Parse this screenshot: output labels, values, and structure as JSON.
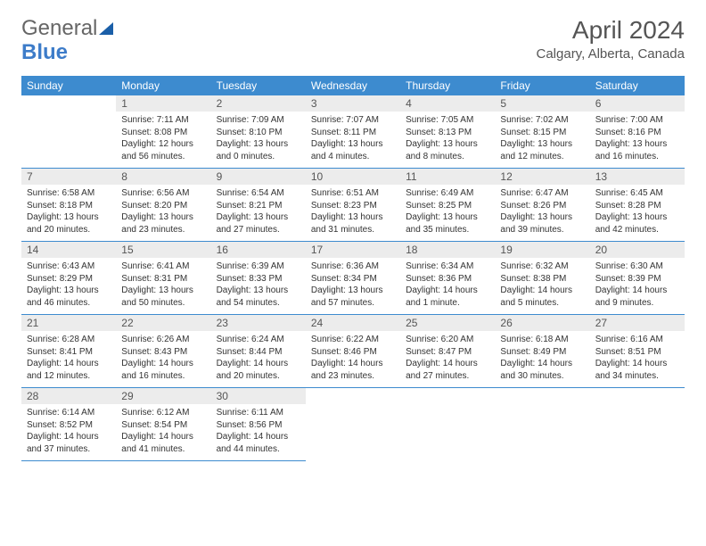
{
  "brand": {
    "part1": "General",
    "part2": "Blue"
  },
  "title": "April 2024",
  "location": "Calgary, Alberta, Canada",
  "colors": {
    "header_bg": "#3d8bcf",
    "header_text": "#ffffff",
    "daynum_bg": "#ececec",
    "text": "#333333",
    "rule": "#3d8bcf",
    "brand_blue": "#3d7cc9"
  },
  "weekdays": [
    "Sunday",
    "Monday",
    "Tuesday",
    "Wednesday",
    "Thursday",
    "Friday",
    "Saturday"
  ],
  "first_weekday_index": 1,
  "days": [
    {
      "n": 1,
      "sunrise": "7:11 AM",
      "sunset": "8:08 PM",
      "daylight": "12 hours and 56 minutes."
    },
    {
      "n": 2,
      "sunrise": "7:09 AM",
      "sunset": "8:10 PM",
      "daylight": "13 hours and 0 minutes."
    },
    {
      "n": 3,
      "sunrise": "7:07 AM",
      "sunset": "8:11 PM",
      "daylight": "13 hours and 4 minutes."
    },
    {
      "n": 4,
      "sunrise": "7:05 AM",
      "sunset": "8:13 PM",
      "daylight": "13 hours and 8 minutes."
    },
    {
      "n": 5,
      "sunrise": "7:02 AM",
      "sunset": "8:15 PM",
      "daylight": "13 hours and 12 minutes."
    },
    {
      "n": 6,
      "sunrise": "7:00 AM",
      "sunset": "8:16 PM",
      "daylight": "13 hours and 16 minutes."
    },
    {
      "n": 7,
      "sunrise": "6:58 AM",
      "sunset": "8:18 PM",
      "daylight": "13 hours and 20 minutes."
    },
    {
      "n": 8,
      "sunrise": "6:56 AM",
      "sunset": "8:20 PM",
      "daylight": "13 hours and 23 minutes."
    },
    {
      "n": 9,
      "sunrise": "6:54 AM",
      "sunset": "8:21 PM",
      "daylight": "13 hours and 27 minutes."
    },
    {
      "n": 10,
      "sunrise": "6:51 AM",
      "sunset": "8:23 PM",
      "daylight": "13 hours and 31 minutes."
    },
    {
      "n": 11,
      "sunrise": "6:49 AM",
      "sunset": "8:25 PM",
      "daylight": "13 hours and 35 minutes."
    },
    {
      "n": 12,
      "sunrise": "6:47 AM",
      "sunset": "8:26 PM",
      "daylight": "13 hours and 39 minutes."
    },
    {
      "n": 13,
      "sunrise": "6:45 AM",
      "sunset": "8:28 PM",
      "daylight": "13 hours and 42 minutes."
    },
    {
      "n": 14,
      "sunrise": "6:43 AM",
      "sunset": "8:29 PM",
      "daylight": "13 hours and 46 minutes."
    },
    {
      "n": 15,
      "sunrise": "6:41 AM",
      "sunset": "8:31 PM",
      "daylight": "13 hours and 50 minutes."
    },
    {
      "n": 16,
      "sunrise": "6:39 AM",
      "sunset": "8:33 PM",
      "daylight": "13 hours and 54 minutes."
    },
    {
      "n": 17,
      "sunrise": "6:36 AM",
      "sunset": "8:34 PM",
      "daylight": "13 hours and 57 minutes."
    },
    {
      "n": 18,
      "sunrise": "6:34 AM",
      "sunset": "8:36 PM",
      "daylight": "14 hours and 1 minute."
    },
    {
      "n": 19,
      "sunrise": "6:32 AM",
      "sunset": "8:38 PM",
      "daylight": "14 hours and 5 minutes."
    },
    {
      "n": 20,
      "sunrise": "6:30 AM",
      "sunset": "8:39 PM",
      "daylight": "14 hours and 9 minutes."
    },
    {
      "n": 21,
      "sunrise": "6:28 AM",
      "sunset": "8:41 PM",
      "daylight": "14 hours and 12 minutes."
    },
    {
      "n": 22,
      "sunrise": "6:26 AM",
      "sunset": "8:43 PM",
      "daylight": "14 hours and 16 minutes."
    },
    {
      "n": 23,
      "sunrise": "6:24 AM",
      "sunset": "8:44 PM",
      "daylight": "14 hours and 20 minutes."
    },
    {
      "n": 24,
      "sunrise": "6:22 AM",
      "sunset": "8:46 PM",
      "daylight": "14 hours and 23 minutes."
    },
    {
      "n": 25,
      "sunrise": "6:20 AM",
      "sunset": "8:47 PM",
      "daylight": "14 hours and 27 minutes."
    },
    {
      "n": 26,
      "sunrise": "6:18 AM",
      "sunset": "8:49 PM",
      "daylight": "14 hours and 30 minutes."
    },
    {
      "n": 27,
      "sunrise": "6:16 AM",
      "sunset": "8:51 PM",
      "daylight": "14 hours and 34 minutes."
    },
    {
      "n": 28,
      "sunrise": "6:14 AM",
      "sunset": "8:52 PM",
      "daylight": "14 hours and 37 minutes."
    },
    {
      "n": 29,
      "sunrise": "6:12 AM",
      "sunset": "8:54 PM",
      "daylight": "14 hours and 41 minutes."
    },
    {
      "n": 30,
      "sunrise": "6:11 AM",
      "sunset": "8:56 PM",
      "daylight": "14 hours and 44 minutes."
    }
  ],
  "labels": {
    "sunrise": "Sunrise:",
    "sunset": "Sunset:",
    "daylight": "Daylight:"
  }
}
